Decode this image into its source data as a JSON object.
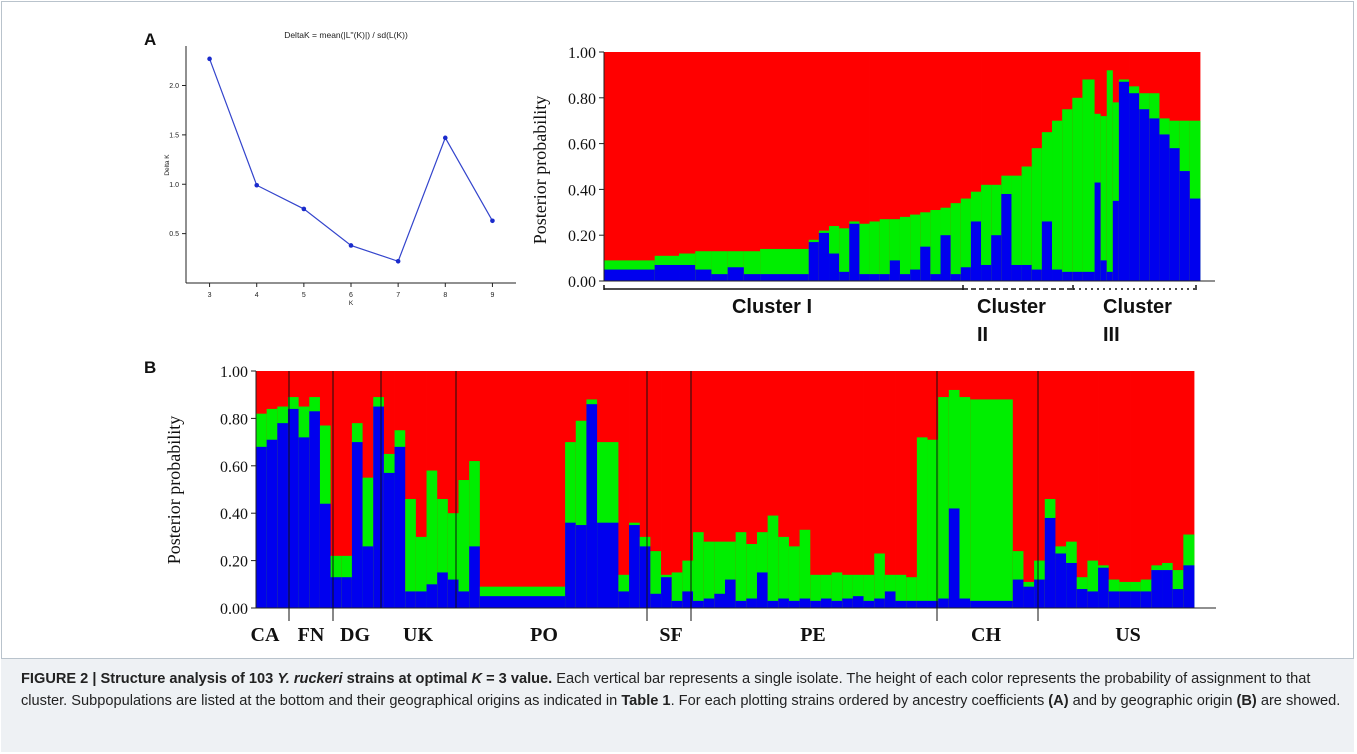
{
  "panels": {
    "a_label": "A",
    "b_label": "B"
  },
  "caption": {
    "figure_number": "FIGURE 2 |",
    "title_pre": " Structure analysis of 103 ",
    "title_species": "Y. ruckeri",
    "title_mid": " strains at optimal ",
    "title_k": "K",
    "title_post": " = 3 value.",
    "body_1": " Each vertical bar represents a single isolate. The height of each color represents the probability of assignment to that cluster. Subpopulations are listed at the bottom and their geographical origins as indicated in ",
    "table_ref": "Table 1",
    "body_2": ". For each plotting strains ordered by ancestry coefficients ",
    "ref_a": "(A)",
    "body_3": " and by geographic origin ",
    "ref_b": "(B)",
    "body_4": " are showed."
  },
  "colors": {
    "cluster_red": "#ff0000",
    "cluster_green": "#00ee00",
    "cluster_blue": "#0000ee",
    "line_blue": "#3344cc"
  },
  "chart_data": [
    {
      "type": "line",
      "title": "DeltaK = mean(|L''(K)|) / sd(L(K))",
      "xlabel": "K",
      "ylabel": "Delta K",
      "x": [
        3,
        4,
        5,
        6,
        7,
        8,
        9
      ],
      "series": [
        {
          "values": [
            2.27,
            0.99,
            0.75,
            0.38,
            0.22,
            1.47,
            0.63
          ]
        }
      ],
      "xlim": [
        2.5,
        9.5
      ],
      "ylim": [
        0.0,
        2.4
      ],
      "yticks": [
        "0.5",
        "1.0",
        "1.5",
        "2.0"
      ],
      "xticks": [
        "3",
        "4",
        "5",
        "6",
        "7",
        "8",
        "9"
      ],
      "grid": false
    },
    {
      "type": "bar",
      "stacked": true,
      "ylabel": "Posterior probability",
      "yticks": [
        "0.00",
        "0.20",
        "0.40",
        "0.60",
        "0.80",
        "1.00"
      ],
      "ylim": [
        0,
        1
      ],
      "series_colors": [
        "#0000ee",
        "#00ee00",
        "#ff0000"
      ],
      "segments": [
        {
          "w": 2.5,
          "blue": 0.05,
          "green": 0.09
        },
        {
          "w": 1.2,
          "blue": 0.07,
          "green": 0.11
        },
        {
          "w": 0.8,
          "blue": 0.07,
          "green": 0.12
        },
        {
          "w": 0.8,
          "blue": 0.05,
          "green": 0.13
        },
        {
          "w": 0.8,
          "blue": 0.03,
          "green": 0.13
        },
        {
          "w": 0.8,
          "blue": 0.06,
          "green": 0.13
        },
        {
          "w": 0.8,
          "blue": 0.03,
          "green": 0.13
        },
        {
          "w": 2.4,
          "blue": 0.03,
          "green": 0.14
        },
        {
          "w": 0.5,
          "blue": 0.17,
          "green": 0.18
        },
        {
          "w": 0.5,
          "blue": 0.21,
          "green": 0.22
        },
        {
          "w": 0.5,
          "blue": 0.12,
          "green": 0.24
        },
        {
          "w": 0.5,
          "blue": 0.04,
          "green": 0.23
        },
        {
          "w": 0.5,
          "blue": 0.25,
          "green": 0.26
        },
        {
          "w": 0.5,
          "blue": 0.03,
          "green": 0.25
        },
        {
          "w": 0.5,
          "blue": 0.03,
          "green": 0.26
        },
        {
          "w": 0.5,
          "blue": 0.03,
          "green": 0.27
        },
        {
          "w": 0.5,
          "blue": 0.09,
          "green": 0.27
        },
        {
          "w": 0.5,
          "blue": 0.03,
          "green": 0.28
        },
        {
          "w": 0.5,
          "blue": 0.05,
          "green": 0.29
        },
        {
          "w": 0.5,
          "blue": 0.15,
          "green": 0.3
        },
        {
          "w": 0.5,
          "blue": 0.03,
          "green": 0.31
        },
        {
          "w": 0.5,
          "blue": 0.2,
          "green": 0.32
        },
        {
          "w": 0.5,
          "blue": 0.03,
          "green": 0.34
        },
        {
          "w": 0.5,
          "blue": 0.06,
          "green": 0.36
        },
        {
          "w": 0.5,
          "blue": 0.26,
          "green": 0.39
        },
        {
          "w": 0.5,
          "blue": 0.07,
          "green": 0.42
        },
        {
          "w": 0.5,
          "blue": 0.2,
          "green": 0.42
        },
        {
          "w": 0.5,
          "blue": 0.38,
          "green": 0.46
        },
        {
          "w": 0.5,
          "blue": 0.07,
          "green": 0.46
        },
        {
          "w": 0.5,
          "blue": 0.07,
          "green": 0.5
        },
        {
          "w": 0.5,
          "blue": 0.05,
          "green": 0.58
        },
        {
          "w": 0.5,
          "blue": 0.26,
          "green": 0.65
        },
        {
          "w": 0.5,
          "blue": 0.05,
          "green": 0.7
        },
        {
          "w": 0.5,
          "blue": 0.04,
          "green": 0.75
        },
        {
          "w": 0.5,
          "blue": 0.04,
          "green": 0.8
        },
        {
          "w": 0.6,
          "blue": 0.04,
          "green": 0.88
        },
        {
          "w": 0.3,
          "blue": 0.43,
          "green": 0.73
        },
        {
          "w": 0.3,
          "blue": 0.09,
          "green": 0.72
        },
        {
          "w": 0.3,
          "blue": 0.04,
          "green": 0.92
        },
        {
          "w": 0.3,
          "blue": 0.35,
          "green": 0.78
        },
        {
          "w": 0.5,
          "blue": 0.87,
          "green": 0.88
        },
        {
          "w": 0.5,
          "blue": 0.82,
          "green": 0.85
        },
        {
          "w": 0.5,
          "blue": 0.75,
          "green": 0.82
        },
        {
          "w": 0.5,
          "blue": 0.71,
          "green": 0.82
        },
        {
          "w": 0.5,
          "blue": 0.64,
          "green": 0.71
        },
        {
          "w": 0.5,
          "blue": 0.58,
          "green": 0.7
        },
        {
          "w": 0.5,
          "blue": 0.48,
          "green": 0.7
        },
        {
          "w": 0.5,
          "blue": 0.36,
          "green": 0.7
        }
      ],
      "groups": [
        {
          "label": "Cluster I"
        },
        {
          "label": "Cluster II"
        },
        {
          "label": "Cluster III"
        }
      ]
    },
    {
      "type": "bar",
      "stacked": true,
      "ylabel": "Posterior probability",
      "yticks": [
        "0.00",
        "0.20",
        "0.40",
        "0.60",
        "0.80",
        "1.00"
      ],
      "ylim": [
        0,
        1
      ],
      "series_colors": [
        "#0000ee",
        "#00ee00",
        "#ff0000"
      ],
      "segments": [
        {
          "w": 1,
          "blue": 0.68,
          "green": 0.82
        },
        {
          "w": 1,
          "blue": 0.71,
          "green": 0.84
        },
        {
          "w": 1,
          "blue": 0.78,
          "green": 0.85
        },
        {
          "w": 1,
          "blue": 0.84,
          "green": 0.89
        },
        {
          "w": 1,
          "blue": 0.72,
          "green": 0.85
        },
        {
          "w": 1,
          "blue": 0.83,
          "green": 0.89
        },
        {
          "w": 1,
          "blue": 0.44,
          "green": 0.77
        },
        {
          "w": 1,
          "blue": 0.13,
          "green": 0.22
        },
        {
          "w": 1,
          "blue": 0.13,
          "green": 0.22
        },
        {
          "w": 1,
          "blue": 0.7,
          "green": 0.78
        },
        {
          "w": 1,
          "blue": 0.26,
          "green": 0.55
        },
        {
          "w": 1,
          "blue": 0.85,
          "green": 0.89
        },
        {
          "w": 1,
          "blue": 0.57,
          "green": 0.65
        },
        {
          "w": 1,
          "blue": 0.68,
          "green": 0.75
        },
        {
          "w": 1,
          "blue": 0.07,
          "green": 0.46
        },
        {
          "w": 1,
          "blue": 0.07,
          "green": 0.3
        },
        {
          "w": 1,
          "blue": 0.1,
          "green": 0.58
        },
        {
          "w": 1,
          "blue": 0.15,
          "green": 0.46
        },
        {
          "w": 1,
          "blue": 0.12,
          "green": 0.4
        },
        {
          "w": 1,
          "blue": 0.07,
          "green": 0.54
        },
        {
          "w": 1,
          "blue": 0.26,
          "green": 0.62
        },
        {
          "w": 8,
          "blue": 0.05,
          "green": 0.09
        },
        {
          "w": 1,
          "blue": 0.36,
          "green": 0.7
        },
        {
          "w": 1,
          "blue": 0.35,
          "green": 0.79
        },
        {
          "w": 1,
          "blue": 0.86,
          "green": 0.88
        },
        {
          "w": 2,
          "blue": 0.36,
          "green": 0.7
        },
        {
          "w": 1,
          "blue": 0.07,
          "green": 0.14
        },
        {
          "w": 1,
          "blue": 0.35,
          "green": 0.36
        },
        {
          "w": 1,
          "blue": 0.26,
          "green": 0.3
        },
        {
          "w": 1,
          "blue": 0.06,
          "green": 0.24
        },
        {
          "w": 1,
          "blue": 0.13,
          "green": 0.14
        },
        {
          "w": 1,
          "blue": 0.03,
          "green": 0.15
        },
        {
          "w": 1,
          "blue": 0.07,
          "green": 0.2
        },
        {
          "w": 1,
          "blue": 0.03,
          "green": 0.32
        },
        {
          "w": 1,
          "blue": 0.04,
          "green": 0.28
        },
        {
          "w": 1,
          "blue": 0.06,
          "green": 0.28
        },
        {
          "w": 1,
          "blue": 0.12,
          "green": 0.28
        },
        {
          "w": 1,
          "blue": 0.03,
          "green": 0.32
        },
        {
          "w": 1,
          "blue": 0.04,
          "green": 0.27
        },
        {
          "w": 1,
          "blue": 0.15,
          "green": 0.32
        },
        {
          "w": 1,
          "blue": 0.03,
          "green": 0.39
        },
        {
          "w": 1,
          "blue": 0.04,
          "green": 0.3
        },
        {
          "w": 1,
          "blue": 0.03,
          "green": 0.26
        },
        {
          "w": 1,
          "blue": 0.04,
          "green": 0.33
        },
        {
          "w": 1,
          "blue": 0.03,
          "green": 0.14
        },
        {
          "w": 1,
          "blue": 0.04,
          "green": 0.14
        },
        {
          "w": 1,
          "blue": 0.03,
          "green": 0.15
        },
        {
          "w": 1,
          "blue": 0.04,
          "green": 0.14
        },
        {
          "w": 1,
          "blue": 0.05,
          "green": 0.14
        },
        {
          "w": 1,
          "blue": 0.03,
          "green": 0.14
        },
        {
          "w": 1,
          "blue": 0.04,
          "green": 0.23
        },
        {
          "w": 1,
          "blue": 0.07,
          "green": 0.14
        },
        {
          "w": 1,
          "blue": 0.03,
          "green": 0.14
        },
        {
          "w": 1,
          "blue": 0.03,
          "green": 0.13
        },
        {
          "w": 1,
          "blue": 0.03,
          "green": 0.72
        },
        {
          "w": 1,
          "blue": 0.03,
          "green": 0.71
        },
        {
          "w": 1,
          "blue": 0.04,
          "green": 0.89
        },
        {
          "w": 1,
          "blue": 0.42,
          "green": 0.92
        },
        {
          "w": 1,
          "blue": 0.04,
          "green": 0.89
        },
        {
          "w": 4,
          "blue": 0.03,
          "green": 0.88
        },
        {
          "w": 1,
          "blue": 0.12,
          "green": 0.24
        },
        {
          "w": 1,
          "blue": 0.09,
          "green": 0.11
        },
        {
          "w": 1,
          "blue": 0.12,
          "green": 0.2
        },
        {
          "w": 1,
          "blue": 0.38,
          "green": 0.46
        },
        {
          "w": 1,
          "blue": 0.23,
          "green": 0.26
        },
        {
          "w": 1,
          "blue": 0.19,
          "green": 0.28
        },
        {
          "w": 1,
          "blue": 0.08,
          "green": 0.13
        },
        {
          "w": 1,
          "blue": 0.07,
          "green": 0.2
        },
        {
          "w": 1,
          "blue": 0.17,
          "green": 0.18
        },
        {
          "w": 1,
          "blue": 0.07,
          "green": 0.12
        },
        {
          "w": 1,
          "blue": 0.07,
          "green": 0.11
        },
        {
          "w": 1,
          "blue": 0.07,
          "green": 0.11
        },
        {
          "w": 1,
          "blue": 0.07,
          "green": 0.12
        },
        {
          "w": 1,
          "blue": 0.16,
          "green": 0.18
        },
        {
          "w": 1,
          "blue": 0.16,
          "green": 0.19
        },
        {
          "w": 1,
          "blue": 0.08,
          "green": 0.16
        },
        {
          "w": 1,
          "blue": 0.18,
          "green": 0.31
        }
      ],
      "groups": [
        {
          "label": "CA"
        },
        {
          "label": "FN"
        },
        {
          "label": "DG"
        },
        {
          "label": "UK"
        },
        {
          "label": "PO"
        },
        {
          "label": "SF"
        },
        {
          "label": "PE"
        },
        {
          "label": "CH"
        },
        {
          "label": "US"
        }
      ]
    }
  ]
}
